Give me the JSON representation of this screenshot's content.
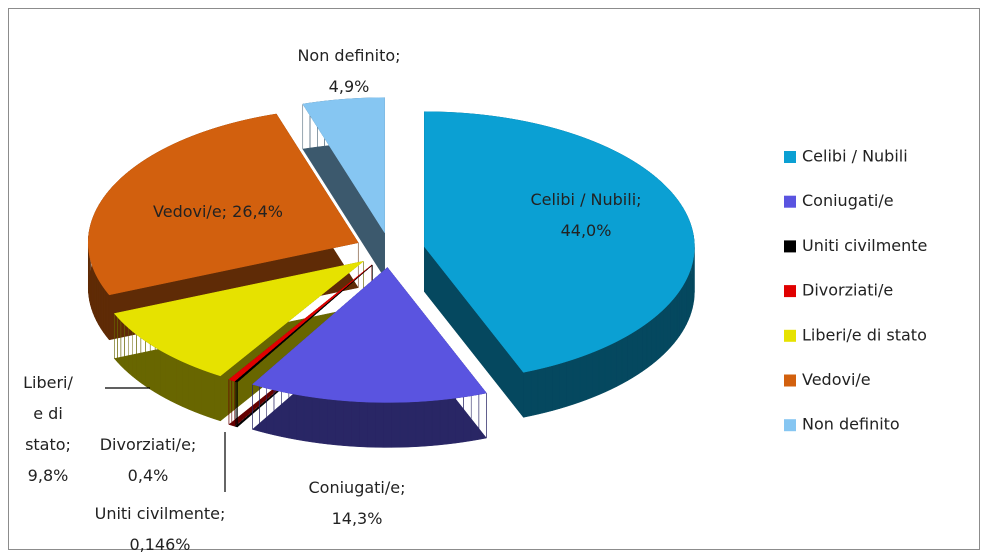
{
  "chart_data": {
    "type": "pie3d",
    "categories": [
      "Celibi / Nubili",
      "Coniugati/e",
      "Uniti civilmente",
      "Divorziati/e",
      "Liberi/e di stato",
      "Vedovi/e",
      "Non definito"
    ],
    "values": [
      44.0,
      14.3,
      0.146,
      0.4,
      9.8,
      26.4,
      4.9
    ],
    "value_labels": [
      "Celibi / Nubili;\n44,0%",
      "Coniugati/e;\n14,3%",
      "Uniti civilmente;\n0,146%",
      "Divorziati/e;\n0,4%",
      "Liberi/\ne di\nstato;\n9,8%",
      "Vedovi/e; 26,4%",
      "Non definito;\n4,9%"
    ],
    "colors": [
      "#0ba0d3",
      "#5a54e0",
      "#000000",
      "#e00000",
      "#e6e200",
      "#d2600e",
      "#86c6f2"
    ],
    "legend": "right"
  }
}
